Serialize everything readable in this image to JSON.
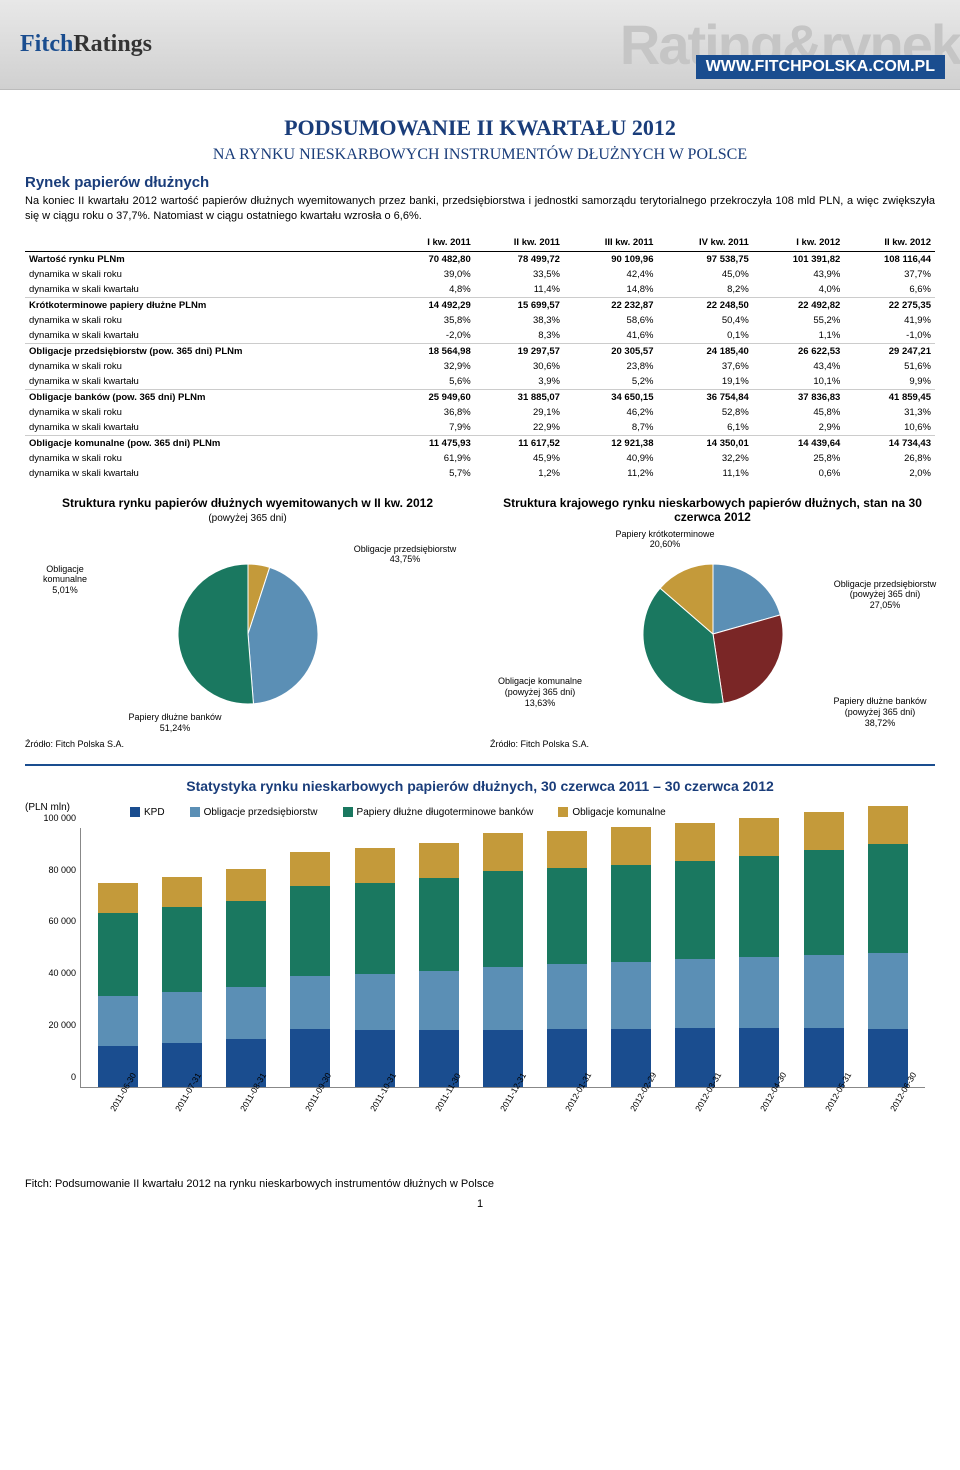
{
  "header": {
    "logo_fitch": "Fitch",
    "logo_ratings": "Ratings",
    "bg_text": "Rating&rynek",
    "url": "WWW.FITCHPOLSKA.COM.PL"
  },
  "title": "PODSUMOWANIE II KWARTAŁU 2012",
  "subtitle": "NA RYNKU NIESKARBOWYCH INSTRUMENTÓW DŁUŻNYCH W POLSCE",
  "section_heading": "Rynek papierów dłużnych",
  "intro": "Na koniec II kwartału 2012 wartość papierów dłużnych wyemitowanych przez banki, przedsiębiorstwa i jednostki samorządu terytorialnego przekroczyła 108 mld PLN, a więc zwiększyła się w ciągu roku o 37,7%. Natomiast w ciągu ostatniego kwartału wzrosła o 6,6%.",
  "table": {
    "headers": [
      "",
      "I kw. 2011",
      "II kw. 2011",
      "III kw. 2011",
      "IV kw. 2011",
      "I kw. 2012",
      "II kw. 2012"
    ],
    "rows": [
      {
        "sect": true,
        "cells": [
          "Wartość rynku PLNm",
          "70 482,80",
          "78 499,72",
          "90 109,96",
          "97 538,75",
          "101 391,82",
          "108 116,44"
        ]
      },
      {
        "cells": [
          "dynamika w skali roku",
          "39,0%",
          "33,5%",
          "42,4%",
          "45,0%",
          "43,9%",
          "37,7%"
        ]
      },
      {
        "cells": [
          "dynamika w skali kwartału",
          "4,8%",
          "11,4%",
          "14,8%",
          "8,2%",
          "4,0%",
          "6,6%"
        ]
      },
      {
        "sect": true,
        "cells": [
          "Krótkoterminowe papiery dłużne PLNm",
          "14 492,29",
          "15 699,57",
          "22 232,87",
          "22 248,50",
          "22 492,82",
          "22 275,35"
        ]
      },
      {
        "cells": [
          "dynamika w skali roku",
          "35,8%",
          "38,3%",
          "58,6%",
          "50,4%",
          "55,2%",
          "41,9%"
        ]
      },
      {
        "cells": [
          "dynamika w skali kwartału",
          "-2,0%",
          "8,3%",
          "41,6%",
          "0,1%",
          "1,1%",
          "-1,0%"
        ]
      },
      {
        "sect": true,
        "cells": [
          "Obligacje przedsiębiorstw (pow. 365 dni) PLNm",
          "18 564,98",
          "19 297,57",
          "20 305,57",
          "24 185,40",
          "26 622,53",
          "29 247,21"
        ]
      },
      {
        "cells": [
          "dynamika w skali roku",
          "32,9%",
          "30,6%",
          "23,8%",
          "37,6%",
          "43,4%",
          "51,6%"
        ]
      },
      {
        "cells": [
          "dynamika w skali kwartału",
          "5,6%",
          "3,9%",
          "5,2%",
          "19,1%",
          "10,1%",
          "9,9%"
        ]
      },
      {
        "sect": true,
        "cells": [
          "Obligacje banków (pow. 365 dni) PLNm",
          "25 949,60",
          "31 885,07",
          "34 650,15",
          "36 754,84",
          "37 836,83",
          "41 859,45"
        ]
      },
      {
        "cells": [
          "dynamika w skali roku",
          "36,8%",
          "29,1%",
          "46,2%",
          "52,8%",
          "45,8%",
          "31,3%"
        ]
      },
      {
        "cells": [
          "dynamika w skali kwartału",
          "7,9%",
          "22,9%",
          "8,7%",
          "6,1%",
          "2,9%",
          "10,6%"
        ]
      },
      {
        "sect": true,
        "cells": [
          "Obligacje komunalne (pow. 365 dni) PLNm",
          "11 475,93",
          "11 617,52",
          "12 921,38",
          "14 350,01",
          "14 439,64",
          "14 734,43"
        ]
      },
      {
        "cells": [
          "dynamika w skali roku",
          "61,9%",
          "45,9%",
          "40,9%",
          "32,2%",
          "25,8%",
          "26,8%"
        ]
      },
      {
        "cells": [
          "dynamika w skali kwartału",
          "5,7%",
          "1,2%",
          "11,2%",
          "11,1%",
          "0,6%",
          "2,0%"
        ]
      }
    ]
  },
  "pies": {
    "left": {
      "title": "Struktura rynku papierów dłużnych wyemitowanych w II kw. 2012",
      "subtitle": "(powyżej 365 dni)",
      "slices": [
        {
          "label": "Obligacje komunalne",
          "value": "5,01%",
          "pct": 5.01,
          "color": "#c49a3a"
        },
        {
          "label": "Obligacje przedsiębiorstw",
          "value": "43,75%",
          "pct": 43.75,
          "color": "#5b8fb5"
        },
        {
          "label": "Papiery dłużne banków",
          "value": "51,24%",
          "pct": 51.24,
          "color": "#1a7860"
        }
      ]
    },
    "right": {
      "title": "Struktura krajowego rynku nieskarbowych papierów dłużnych, stan na 30 czerwca 2012",
      "slices": [
        {
          "label": "Papiery krótkoterminowe",
          "value": "20,60%",
          "pct": 20.6,
          "color": "#5b8fb5"
        },
        {
          "label": "Obligacje przedsiębiorstw (powyżej 365 dni)",
          "value": "27,05%",
          "pct": 27.05,
          "color": "#7a2626"
        },
        {
          "label": "Papiery dłużne banków (powyżej 365 dni)",
          "value": "38,72%",
          "pct": 38.72,
          "color": "#1a7860"
        },
        {
          "label": "Obligacje komunalne (powyżej 365 dni)",
          "value": "13,63%",
          "pct": 13.63,
          "color": "#c49a3a"
        }
      ]
    },
    "source": "Źródło: Fitch Polska S.A."
  },
  "barchart": {
    "title": "Statystyka rynku nieskarbowych papierów dłużnych, 30 czerwca 2011 – 30 czerwca 2012",
    "ylabel": "(PLN mln)",
    "ymax": 100000,
    "yticks": [
      0,
      20000,
      40000,
      60000,
      80000,
      100000
    ],
    "ytick_labels": [
      "0",
      "20 000",
      "40 000",
      "60 000",
      "80 000",
      "100 000"
    ],
    "legend": [
      {
        "label": "KPD",
        "color": "#1a4d8f"
      },
      {
        "label": "Obligacje przedsiębiorstw",
        "color": "#5b8fb5"
      },
      {
        "label": "Papiery dłużne długoterminowe banków",
        "color": "#1a7860"
      },
      {
        "label": "Obligacje komunalne",
        "color": "#c49a3a"
      }
    ],
    "categories": [
      "2011-06-30",
      "2011-07-31",
      "2011-08-31",
      "2011-09-30",
      "2011-10-31",
      "2011-11-30",
      "2011-12-31",
      "2012-01-31",
      "2012-02-29",
      "2012-03-31",
      "2012-04-30",
      "2012-05-31",
      "2012-06-30"
    ],
    "series": {
      "kpd": [
        15700,
        17000,
        18500,
        22200,
        21800,
        21900,
        22000,
        22100,
        22200,
        22500,
        22400,
        22400,
        22300
      ],
      "corp": [
        19300,
        19500,
        19800,
        20300,
        21500,
        22500,
        24200,
        25000,
        25800,
        26600,
        27500,
        28300,
        29200
      ],
      "bank": [
        31900,
        32500,
        33200,
        34700,
        35200,
        35800,
        36800,
        37000,
        37300,
        37800,
        39000,
        40200,
        41900
      ],
      "muni": [
        11600,
        11800,
        12200,
        12900,
        13300,
        13700,
        14400,
        14400,
        14400,
        14400,
        14500,
        14600,
        14700
      ]
    }
  },
  "footer": "Fitch: Podsumowanie II kwartału 2012 na rynku nieskarbowych instrumentów dłużnych w Polsce",
  "page": "1"
}
